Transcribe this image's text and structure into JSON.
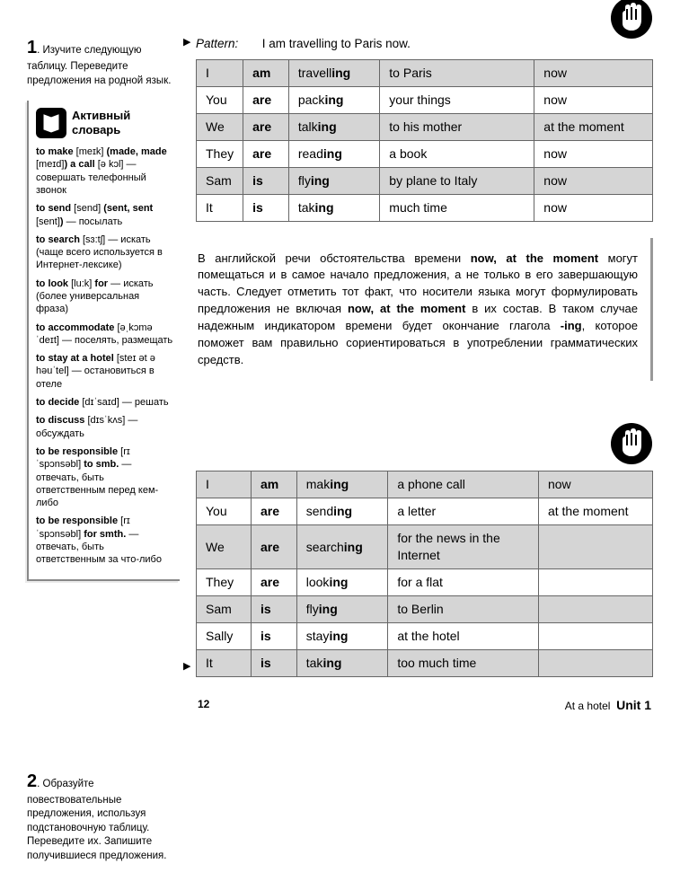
{
  "exercise1": {
    "num": "1",
    "text": ". Изучите следующую таблицу. Переведите предложения на родной язык."
  },
  "exercise2": {
    "num": "2",
    "text": ". Образуйте повествовательные предложения, используя подстановочную таблицу. Переведите их. Запишите получившиеся предложения."
  },
  "vocab": {
    "title1": "Активный",
    "title2": "словарь",
    "entries": [
      "<b>to make</b> [meɪk] <b>(made, made</b> [meɪd]<b>) a call</b> [ə kɔl] — совершать телефонный звонок",
      "<b>to send</b> [send] <b>(sent, sent</b> [sent]<b>)</b> — посылать",
      "<b>to search</b> [sɜ:tʃ] — искать (чаще всего используется в Интернет-лексике)",
      "<b>to look</b> [lu:k] <b>for</b> — искать (более универсальная фраза)",
      "<b>to accommodate</b> [əˌkɔməˈdeɪt] — поселять, размещать",
      "<b>to stay at a hotel</b> [steɪ ət ə həuˈtel] — остановиться в отеле",
      "<b>to decide</b> [dɪˈsaɪd] — решать",
      "<b>to discuss</b> [dɪsˈkʌs] — обсуждать",
      "<b>to be responsible</b> [rɪˈspɔnsəbl] <b>to smb.</b> — отвечать, быть ответственным перед кем-либо",
      "<b>to be responsible</b> [rɪˈspɔnsəbl] <b>for smth.</b> — отвечать, быть ответственным за что-либо"
    ]
  },
  "pattern": {
    "label": "Pattern:",
    "text": "I am travelling to Paris now."
  },
  "table1": {
    "rows": [
      [
        "I",
        "<b>am</b>",
        "travell<b>ing</b>",
        "to Paris",
        "now"
      ],
      [
        "You",
        "<b>are</b>",
        "pack<b>ing</b>",
        "your things",
        "now"
      ],
      [
        "We",
        "<b>are</b>",
        "talk<b>ing</b>",
        "to his mother",
        "at the moment"
      ],
      [
        "They",
        "<b>are</b>",
        "read<b>ing</b>",
        "a book",
        "now"
      ],
      [
        "Sam",
        "<b>is</b>",
        "fly<b>ing</b>",
        "by plane to Italy",
        "now"
      ],
      [
        "It",
        "<b>is</b>",
        "tak<b>ing</b>",
        "much time",
        "now"
      ]
    ]
  },
  "explanation": "В английской речи обстоятельства времени <b>now, at the moment</b> могут помещаться и в самое начало предложения, а не только в его завершающую часть. Следует отметить тот факт, что носители языка могут формулировать предложения не включая <b>now, at the moment</b> в их состав. В таком случае надежным индикатором времени будет окончание глагола <b>-ing</b>, которое поможет вам правильно сориентироваться в употреблении грамматических средств.",
  "table2": {
    "rows": [
      [
        "I",
        "<b>am</b>",
        "mak<b>ing</b>",
        "a phone call",
        "now"
      ],
      [
        "You",
        "<b>are</b>",
        "send<b>ing</b>",
        "a letter",
        "at the moment"
      ],
      [
        "We",
        "<b>are</b>",
        "search<b>ing</b>",
        "for the news in the Internet",
        ""
      ],
      [
        "They",
        "<b>are</b>",
        "look<b>ing</b>",
        "for a flat",
        ""
      ],
      [
        "Sam",
        "<b>is</b>",
        "fly<b>ing</b>",
        "to Berlin",
        ""
      ],
      [
        "Sally",
        "<b>is</b>",
        "stay<b>ing</b>",
        "at the hotel",
        ""
      ],
      [
        "It",
        "<b>is</b>",
        "tak<b>ing</b>",
        "too much time",
        ""
      ]
    ]
  },
  "footer": {
    "page": "12",
    "section": "At a hotel",
    "unit": "Unit 1"
  },
  "colors": {
    "shaded": "#d5d5d5",
    "border": "#666666"
  }
}
